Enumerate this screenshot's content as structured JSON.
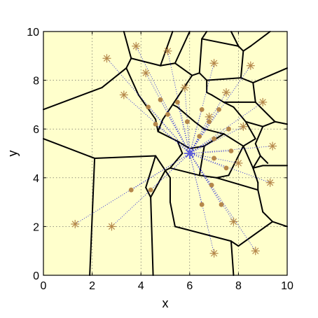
{
  "chart_data": {
    "type": "scatter",
    "title": "",
    "xlabel": "x",
    "ylabel": "y",
    "xlim": [
      0,
      10
    ],
    "ylim": [
      0,
      10
    ],
    "xticks": [
      0,
      2,
      4,
      6,
      8,
      10
    ],
    "yticks": [
      0,
      2,
      4,
      6,
      8,
      10
    ],
    "grid": true,
    "colors": {
      "background": "#ffffcc",
      "marker": "#b5874a",
      "center": "#5a5ad8",
      "link": "#2b2bd8",
      "edge": "#000000",
      "grid": "#555555"
    },
    "center": [
      6.0,
      5.0
    ],
    "series": [
      {
        "marker": "star",
        "points": [
          [
            1.3,
            2.1
          ],
          [
            2.8,
            2.0
          ],
          [
            2.6,
            8.9
          ],
          [
            3.8,
            9.4
          ],
          [
            5.1,
            9.2
          ],
          [
            4.2,
            8.3
          ],
          [
            3.3,
            7.4
          ],
          [
            5.8,
            7.7
          ],
          [
            7.0,
            8.7
          ],
          [
            8.5,
            8.6
          ],
          [
            7.5,
            7.5
          ],
          [
            9.0,
            7.1
          ],
          [
            8.2,
            6.1
          ],
          [
            6.8,
            6.5
          ],
          [
            9.4,
            5.3
          ],
          [
            8.0,
            4.6
          ],
          [
            9.3,
            3.8
          ],
          [
            7.8,
            2.2
          ],
          [
            8.7,
            1.0
          ],
          [
            7.0,
            0.9
          ]
        ]
      },
      {
        "marker": "dot",
        "points": [
          [
            4.3,
            6.9
          ],
          [
            4.8,
            7.2
          ],
          [
            5.5,
            7.1
          ],
          [
            6.5,
            6.8
          ],
          [
            7.2,
            6.8
          ],
          [
            4.6,
            6.2
          ],
          [
            5.1,
            6.6
          ],
          [
            5.9,
            6.3
          ],
          [
            6.4,
            5.7
          ],
          [
            7.0,
            5.6
          ],
          [
            7.6,
            6.0
          ],
          [
            6.8,
            6.3
          ],
          [
            7.7,
            5.1
          ],
          [
            7.0,
            4.8
          ],
          [
            7.5,
            4.4
          ],
          [
            3.6,
            3.5
          ],
          [
            4.4,
            3.5
          ],
          [
            6.5,
            2.9
          ],
          [
            7.3,
            2.9
          ],
          [
            6.9,
            3.7
          ]
        ]
      }
    ],
    "edges": [
      [
        [
          0,
          6.8
        ],
        [
          2.4,
          7.7
        ]
      ],
      [
        [
          2.4,
          7.7
        ],
        [
          3.4,
          8.5
        ]
      ],
      [
        [
          3.4,
          8.5
        ],
        [
          3.6,
          8.9
        ]
      ],
      [
        [
          3.6,
          8.9
        ],
        [
          3.3,
          10
        ]
      ],
      [
        [
          3.6,
          8.9
        ],
        [
          4.8,
          8.6
        ]
      ],
      [
        [
          4.8,
          8.6
        ],
        [
          5.3,
          10
        ]
      ],
      [
        [
          4.8,
          8.6
        ],
        [
          5.4,
          8.7
        ]
      ],
      [
        [
          5.4,
          8.7
        ],
        [
          6.1,
          8.2
        ]
      ],
      [
        [
          5.4,
          8.7
        ],
        [
          6.0,
          10
        ]
      ],
      [
        [
          6.1,
          8.2
        ],
        [
          6.4,
          8.3
        ]
      ],
      [
        [
          6.4,
          8.3
        ],
        [
          6.5,
          9.7
        ]
      ],
      [
        [
          6.5,
          9.7
        ],
        [
          6.7,
          10
        ]
      ],
      [
        [
          6.5,
          9.7
        ],
        [
          8.0,
          9.4
        ]
      ],
      [
        [
          8.0,
          9.4
        ],
        [
          7.7,
          10
        ]
      ],
      [
        [
          8.0,
          9.4
        ],
        [
          8.2,
          9.2
        ]
      ],
      [
        [
          8.2,
          9.2
        ],
        [
          8.5,
          9.4
        ]
      ],
      [
        [
          8.5,
          9.4
        ],
        [
          9.3,
          10
        ]
      ],
      [
        [
          8.2,
          9.2
        ],
        [
          8.1,
          8.1
        ]
      ],
      [
        [
          8.1,
          8.1
        ],
        [
          8.6,
          7.9
        ]
      ],
      [
        [
          8.6,
          7.9
        ],
        [
          10,
          8.5
        ]
      ],
      [
        [
          8.6,
          7.9
        ],
        [
          8.7,
          7.1
        ]
      ],
      [
        [
          6.4,
          8.3
        ],
        [
          6.7,
          8.0
        ]
      ],
      [
        [
          6.7,
          8.0
        ],
        [
          8.1,
          8.1
        ]
      ],
      [
        [
          6.7,
          8.0
        ],
        [
          6.7,
          7.5
        ]
      ],
      [
        [
          6.7,
          7.5
        ],
        [
          6.9,
          7.4
        ]
      ],
      [
        [
          6.9,
          7.4
        ],
        [
          7.4,
          7.1
        ]
      ],
      [
        [
          7.4,
          7.1
        ],
        [
          8.7,
          7.1
        ]
      ],
      [
        [
          8.7,
          7.1
        ],
        [
          9.5,
          6.3
        ]
      ],
      [
        [
          9.5,
          6.3
        ],
        [
          10,
          6.2
        ]
      ],
      [
        [
          9.5,
          6.3
        ],
        [
          9.0,
          6.1
        ]
      ],
      [
        [
          9.0,
          6.1
        ],
        [
          8.3,
          6.3
        ]
      ],
      [
        [
          8.3,
          6.3
        ],
        [
          7.8,
          6.9
        ]
      ],
      [
        [
          7.8,
          6.9
        ],
        [
          7.4,
          7.1
        ]
      ],
      [
        [
          8.3,
          6.3
        ],
        [
          8.7,
          5.6
        ]
      ],
      [
        [
          8.7,
          5.6
        ],
        [
          8.2,
          5.3
        ]
      ],
      [
        [
          9.0,
          6.1
        ],
        [
          8.7,
          5.4
        ]
      ],
      [
        [
          8.7,
          5.4
        ],
        [
          8.9,
          4.9
        ]
      ],
      [
        [
          8.9,
          4.9
        ],
        [
          8.6,
          4.4
        ]
      ],
      [
        [
          8.6,
          4.4
        ],
        [
          9.0,
          4.5
        ]
      ],
      [
        [
          9.0,
          4.5
        ],
        [
          10,
          4.5
        ]
      ],
      [
        [
          8.9,
          4.9
        ],
        [
          9.2,
          4.6
        ]
      ],
      [
        [
          8.6,
          4.4
        ],
        [
          8.8,
          3.8
        ]
      ],
      [
        [
          8.8,
          3.8
        ],
        [
          8.8,
          3.5
        ]
      ],
      [
        [
          8.8,
          3.5
        ],
        [
          9.0,
          2.6
        ]
      ],
      [
        [
          9.0,
          2.6
        ],
        [
          9.4,
          2.2
        ]
      ],
      [
        [
          9.4,
          2.2
        ],
        [
          10,
          2.0
        ]
      ],
      [
        [
          9.4,
          2.2
        ],
        [
          8.0,
          1.2
        ]
      ],
      [
        [
          8.0,
          1.2
        ],
        [
          7.7,
          1.4
        ]
      ],
      [
        [
          7.7,
          1.4
        ],
        [
          7.8,
          0
        ]
      ],
      [
        [
          7.7,
          1.4
        ],
        [
          5.4,
          2.0
        ]
      ],
      [
        [
          5.4,
          2.0
        ],
        [
          5.2,
          3.0
        ]
      ],
      [
        [
          5.2,
          3.0
        ],
        [
          5.2,
          4.0
        ]
      ],
      [
        [
          5.2,
          4.0
        ],
        [
          5.0,
          4.3
        ]
      ],
      [
        [
          5.0,
          4.3
        ],
        [
          5.2,
          4.4
        ]
      ],
      [
        [
          5.2,
          4.4
        ],
        [
          5.7,
          5.0
        ]
      ],
      [
        [
          5.7,
          5.0
        ],
        [
          5.5,
          5.5
        ]
      ],
      [
        [
          5.5,
          5.5
        ],
        [
          4.7,
          5.9
        ]
      ],
      [
        [
          4.7,
          5.9
        ],
        [
          4.6,
          6.4
        ]
      ],
      [
        [
          4.6,
          6.4
        ],
        [
          3.9,
          7.4
        ]
      ],
      [
        [
          3.9,
          7.4
        ],
        [
          3.4,
          8.5
        ]
      ],
      [
        [
          4.7,
          5.9
        ],
        [
          4.9,
          6.4
        ]
      ],
      [
        [
          4.9,
          6.4
        ],
        [
          5.3,
          7.0
        ]
      ],
      [
        [
          5.3,
          7.0
        ],
        [
          6.1,
          8.2
        ]
      ],
      [
        [
          5.3,
          7.0
        ],
        [
          5.5,
          6.9
        ]
      ],
      [
        [
          5.5,
          6.9
        ],
        [
          6.2,
          6.3
        ]
      ],
      [
        [
          6.2,
          6.3
        ],
        [
          6.6,
          6.0
        ]
      ],
      [
        [
          6.6,
          6.0
        ],
        [
          7.4,
          5.8
        ]
      ],
      [
        [
          7.4,
          5.8
        ],
        [
          8.2,
          5.3
        ]
      ],
      [
        [
          8.2,
          5.3
        ],
        [
          8.6,
          4.4
        ]
      ],
      [
        [
          5.2,
          4.4
        ],
        [
          6.4,
          4.1
        ]
      ],
      [
        [
          6.4,
          4.1
        ],
        [
          7.1,
          4.0
        ]
      ],
      [
        [
          7.1,
          4.0
        ],
        [
          8.8,
          3.5
        ]
      ],
      [
        [
          5.0,
          4.3
        ],
        [
          4.6,
          4.9
        ]
      ],
      [
        [
          4.6,
          4.9
        ],
        [
          2.1,
          4.8
        ]
      ],
      [
        [
          2.1,
          4.8
        ],
        [
          0,
          5.6
        ]
      ],
      [
        [
          2.1,
          4.8
        ],
        [
          1.9,
          0
        ]
      ],
      [
        [
          4.6,
          4.9
        ],
        [
          4.2,
          3.6
        ]
      ],
      [
        [
          4.2,
          3.6
        ],
        [
          4.4,
          3.2
        ]
      ],
      [
        [
          4.4,
          3.2
        ],
        [
          5.0,
          4.3
        ]
      ],
      [
        [
          4.4,
          3.2
        ],
        [
          4.5,
          0
        ]
      ],
      [
        [
          5.5,
          5.5
        ],
        [
          6.0,
          5.2
        ]
      ],
      [
        [
          6.0,
          5.2
        ],
        [
          6.6,
          5.3
        ]
      ],
      [
        [
          6.6,
          5.3
        ],
        [
          7.4,
          5.8
        ]
      ],
      [
        [
          6.6,
          5.3
        ],
        [
          6.4,
          4.1
        ]
      ],
      [
        [
          7.1,
          4.0
        ],
        [
          7.6,
          4.1
        ]
      ],
      [
        [
          7.6,
          4.1
        ],
        [
          8.2,
          5.3
        ]
      ]
    ]
  }
}
